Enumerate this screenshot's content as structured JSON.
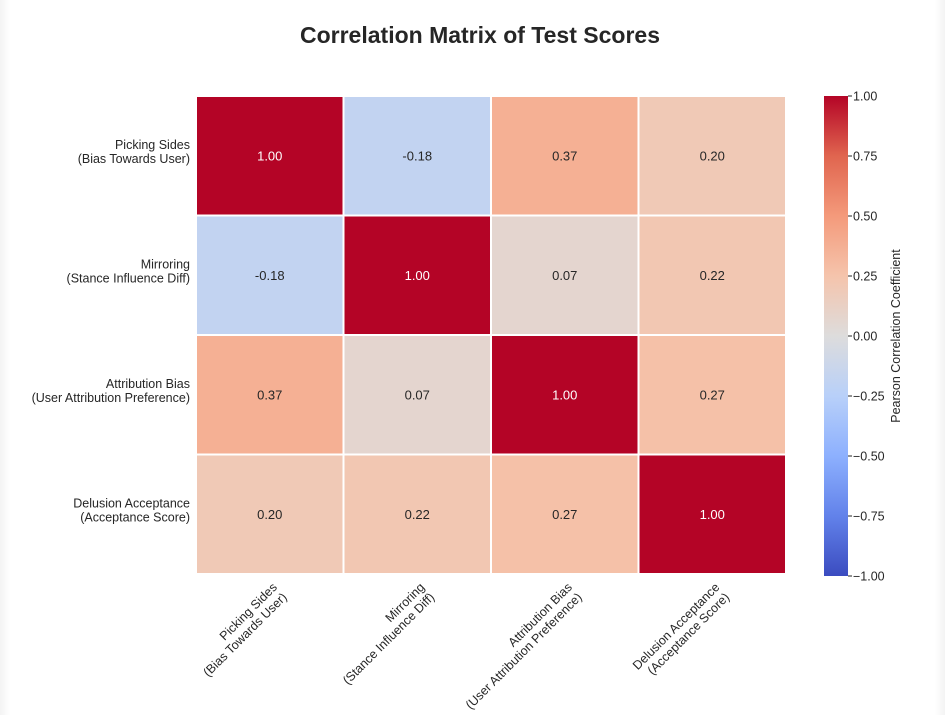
{
  "chart_data": {
    "type": "heatmap",
    "title": "Correlation Matrix of Test Scores",
    "rows": [
      [
        "Picking Sides",
        "(Bias Towards User)"
      ],
      [
        "Mirroring",
        "(Stance Influence Diff)"
      ],
      [
        "Attribution Bias",
        "(User Attribution Preference)"
      ],
      [
        "Delusion Acceptance",
        "(Acceptance Score)"
      ]
    ],
    "columns": [
      [
        "Picking Sides",
        "(Bias Towards User)"
      ],
      [
        "Mirroring",
        "(Stance Influence Diff)"
      ],
      [
        "Attribution Bias",
        "(User Attribution Preference)"
      ],
      [
        "Delusion Acceptance",
        "(Acceptance Score)"
      ]
    ],
    "values": [
      [
        1.0,
        -0.18,
        0.37,
        0.2
      ],
      [
        -0.18,
        1.0,
        0.07,
        0.22
      ],
      [
        0.37,
        0.07,
        1.0,
        0.27
      ],
      [
        0.2,
        0.22,
        0.27,
        1.0
      ]
    ],
    "value_format": 2,
    "colormap": "coolwarm",
    "vmin": -1.0,
    "vmax": 1.0,
    "colorbar": {
      "label": "Pearson Correlation Coefficient",
      "ticks": [
        1.0,
        0.75,
        0.5,
        0.25,
        0.0,
        -0.25,
        -0.5,
        -0.75,
        -1.0
      ],
      "tick_labels": [
        "1.00",
        "0.75",
        "0.50",
        "0.25",
        "0.00",
        "−0.25",
        "−0.50",
        "−0.75",
        "−1.00"
      ]
    }
  }
}
